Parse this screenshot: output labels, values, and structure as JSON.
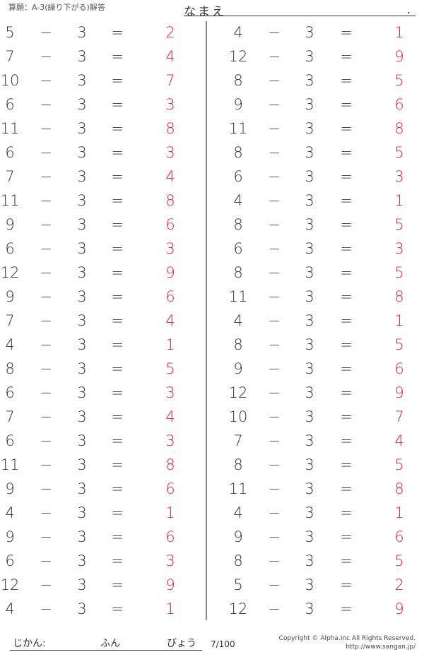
{
  "header": {
    "title": "算願：A-3(繰り下がる)解答",
    "name_label": "なまえ",
    "name_dot": "."
  },
  "operator": "−",
  "equals": "=",
  "subtrahend": "3",
  "left_problems": [
    [
      5,
      2
    ],
    [
      7,
      4
    ],
    [
      10,
      7
    ],
    [
      6,
      3
    ],
    [
      11,
      8
    ],
    [
      6,
      3
    ],
    [
      7,
      4
    ],
    [
      11,
      8
    ],
    [
      9,
      6
    ],
    [
      6,
      3
    ],
    [
      12,
      9
    ],
    [
      9,
      6
    ],
    [
      7,
      4
    ],
    [
      4,
      1
    ],
    [
      8,
      5
    ],
    [
      6,
      3
    ],
    [
      7,
      4
    ],
    [
      6,
      3
    ],
    [
      11,
      8
    ],
    [
      9,
      6
    ],
    [
      4,
      1
    ],
    [
      9,
      6
    ],
    [
      6,
      3
    ],
    [
      12,
      9
    ],
    [
      4,
      1
    ]
  ],
  "right_problems": [
    [
      4,
      1
    ],
    [
      12,
      9
    ],
    [
      8,
      5
    ],
    [
      9,
      6
    ],
    [
      11,
      8
    ],
    [
      8,
      5
    ],
    [
      6,
      3
    ],
    [
      4,
      1
    ],
    [
      8,
      5
    ],
    [
      6,
      3
    ],
    [
      8,
      5
    ],
    [
      11,
      8
    ],
    [
      4,
      1
    ],
    [
      8,
      5
    ],
    [
      9,
      6
    ],
    [
      12,
      9
    ],
    [
      10,
      7
    ],
    [
      7,
      4
    ],
    [
      8,
      5
    ],
    [
      11,
      8
    ],
    [
      4,
      1
    ],
    [
      9,
      6
    ],
    [
      8,
      5
    ],
    [
      5,
      2
    ],
    [
      12,
      9
    ]
  ],
  "colors": {
    "answer": "#e8203a",
    "text": "#333333"
  },
  "footer": {
    "time_label": "じかん:",
    "minutes_label": "ふん",
    "seconds_label": "びょう",
    "page": "7/100",
    "copyright": "Copyright © Alpha.Inc All Rights Reserved.",
    "url": "http://www.sangan.jp/"
  }
}
